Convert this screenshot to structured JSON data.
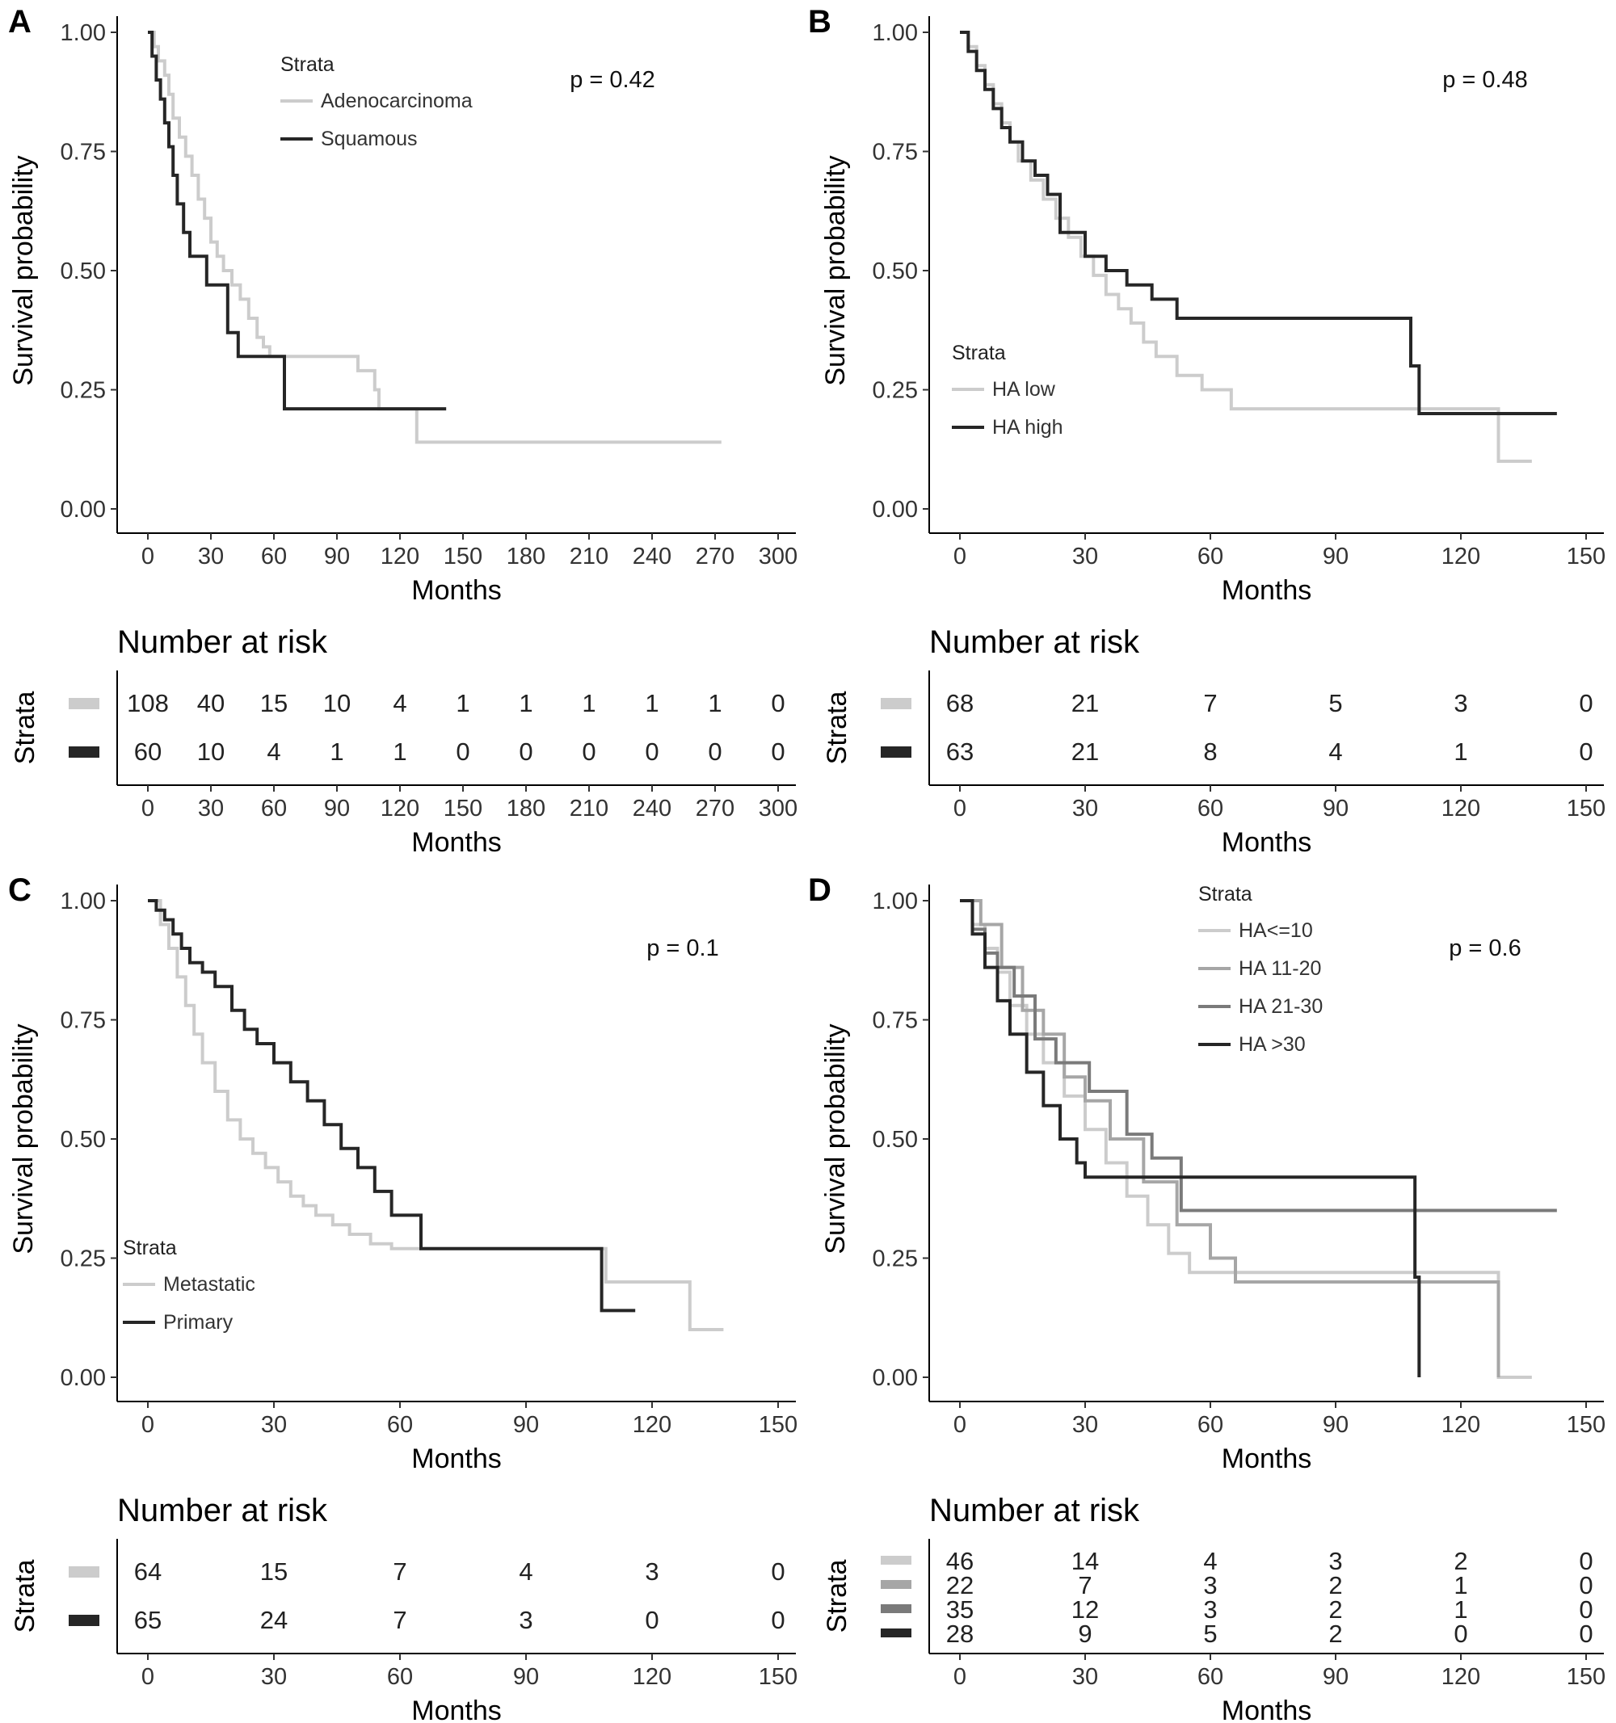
{
  "figure": {
    "panels": [
      {
        "id": "A",
        "pvalue": "p = 0.42",
        "legend": {
          "title": "Strata",
          "items": [
            "Adenocarcinoma",
            "Squamous"
          ]
        },
        "risk_title": "Number at risk",
        "risk_ylabel": "Strata",
        "risk_xlabel": "Months",
        "risk_rows": [
          {
            "color": "#cccccc",
            "values": [
              108,
              40,
              15,
              10,
              4,
              1,
              1,
              1,
              1,
              1,
              0
            ]
          },
          {
            "color": "#262626",
            "values": [
              60,
              10,
              4,
              1,
              1,
              0,
              0,
              0,
              0,
              0,
              0
            ]
          }
        ]
      },
      {
        "id": "B",
        "pvalue": "p = 0.48",
        "legend": {
          "title": "Strata",
          "items": [
            "HA low",
            "HA high"
          ]
        },
        "risk_title": "Number at risk",
        "risk_ylabel": "Strata",
        "risk_xlabel": "Months",
        "risk_rows": [
          {
            "color": "#cccccc",
            "values": [
              68,
              21,
              7,
              5,
              3,
              0
            ]
          },
          {
            "color": "#262626",
            "values": [
              63,
              21,
              8,
              4,
              1,
              0
            ]
          }
        ]
      },
      {
        "id": "C",
        "pvalue": "p = 0.1",
        "legend": {
          "title": "Strata",
          "items": [
            "Metastatic",
            "Primary"
          ]
        },
        "risk_title": "Number at risk",
        "risk_ylabel": "Strata",
        "risk_xlabel": "Months",
        "risk_rows": [
          {
            "color": "#cccccc",
            "values": [
              64,
              15,
              7,
              4,
              3,
              0
            ]
          },
          {
            "color": "#262626",
            "values": [
              65,
              24,
              7,
              3,
              0,
              0
            ]
          }
        ]
      },
      {
        "id": "D",
        "pvalue": "p = 0.6",
        "legend": {
          "title": "Strata",
          "items": [
            "HA<=10",
            "HA 11-20",
            "HA 21-30",
            "HA >30"
          ]
        },
        "risk_title": "Number at risk",
        "risk_ylabel": "Strata",
        "risk_xlabel": "Months",
        "risk_rows": [
          {
            "color": "#cccccc",
            "values": [
              46,
              14,
              4,
              3,
              2,
              0
            ]
          },
          {
            "color": "#a6a6a6",
            "values": [
              22,
              7,
              3,
              2,
              1,
              0
            ]
          },
          {
            "color": "#7a7a7a",
            "values": [
              35,
              12,
              3,
              2,
              1,
              0
            ]
          },
          {
            "color": "#262626",
            "values": [
              28,
              9,
              5,
              2,
              0,
              0
            ]
          }
        ]
      }
    ]
  },
  "chart_data": [
    {
      "panel": "A",
      "type": "line",
      "subtype": "kaplan-meier step",
      "xlabel": "Months",
      "ylabel": "Survival probability",
      "xlim": [
        -7,
        313
      ],
      "ylim": [
        -0.05,
        1.05
      ],
      "xticks": [
        0,
        30,
        60,
        90,
        120,
        150,
        180,
        210,
        240,
        270,
        300
      ],
      "yticks": [
        "0.00",
        "0.25",
        "0.50",
        "0.75",
        "1.00"
      ],
      "grid": false,
      "legend_position": "top-left",
      "series": [
        {
          "name": "Adenocarcinoma",
          "color": "#cccccc",
          "x": [
            0,
            3,
            5,
            8,
            10,
            12,
            15,
            18,
            21,
            24,
            27,
            30,
            33,
            36,
            40,
            44,
            48,
            52,
            55,
            58,
            62,
            100,
            108,
            110,
            128,
            273
          ],
          "y": [
            1.0,
            0.97,
            0.94,
            0.91,
            0.87,
            0.82,
            0.78,
            0.74,
            0.7,
            0.65,
            0.61,
            0.56,
            0.53,
            0.5,
            0.47,
            0.44,
            0.4,
            0.36,
            0.34,
            0.32,
            0.32,
            0.29,
            0.25,
            0.21,
            0.14,
            0.14
          ]
        },
        {
          "name": "Squamous",
          "color": "#262626",
          "x": [
            0,
            2,
            4,
            6,
            8,
            10,
            12,
            14,
            17,
            20,
            28,
            38,
            43,
            65,
            142
          ],
          "y": [
            1.0,
            0.95,
            0.9,
            0.86,
            0.81,
            0.76,
            0.7,
            0.64,
            0.58,
            0.53,
            0.47,
            0.37,
            0.32,
            0.21,
            0.21
          ]
        }
      ]
    },
    {
      "panel": "B",
      "type": "line",
      "subtype": "kaplan-meier step",
      "xlabel": "Months",
      "ylabel": "Survival probability",
      "xlim": [
        -7,
        156
      ],
      "ylim": [
        -0.05,
        1.05
      ],
      "xticks": [
        0,
        30,
        60,
        90,
        120,
        150
      ],
      "yticks": [
        "0.00",
        "0.25",
        "0.50",
        "0.75",
        "1.00"
      ],
      "grid": false,
      "legend_position": "bottom-left",
      "series": [
        {
          "name": "HA low",
          "color": "#cccccc",
          "x": [
            0,
            2,
            4,
            6,
            8,
            10,
            12,
            14,
            17,
            20,
            23,
            26,
            29,
            32,
            35,
            38,
            41,
            44,
            47,
            52,
            58,
            65,
            129,
            137
          ],
          "y": [
            1.0,
            0.97,
            0.93,
            0.89,
            0.85,
            0.81,
            0.77,
            0.73,
            0.69,
            0.65,
            0.61,
            0.57,
            0.53,
            0.49,
            0.45,
            0.42,
            0.39,
            0.35,
            0.32,
            0.28,
            0.25,
            0.21,
            0.1,
            0.1
          ]
        },
        {
          "name": "HA high",
          "color": "#262626",
          "x": [
            0,
            2,
            4,
            6,
            8,
            10,
            12,
            15,
            18,
            21,
            24,
            30,
            35,
            40,
            46,
            52,
            108,
            110,
            143
          ],
          "y": [
            1.0,
            0.96,
            0.92,
            0.88,
            0.84,
            0.8,
            0.77,
            0.73,
            0.7,
            0.66,
            0.58,
            0.53,
            0.5,
            0.47,
            0.44,
            0.4,
            0.3,
            0.2,
            0.2
          ]
        }
      ]
    },
    {
      "panel": "C",
      "type": "line",
      "subtype": "kaplan-meier step",
      "xlabel": "Months",
      "ylabel": "Survival probability",
      "xlim": [
        -7,
        156
      ],
      "ylim": [
        -0.05,
        1.05
      ],
      "xticks": [
        0,
        30,
        60,
        90,
        120,
        150
      ],
      "yticks": [
        "0.00",
        "0.25",
        "0.50",
        "0.75",
        "1.00"
      ],
      "grid": false,
      "legend_position": "bottom-left",
      "series": [
        {
          "name": "Metastatic",
          "color": "#cccccc",
          "x": [
            0,
            3,
            5,
            7,
            9,
            11,
            13,
            16,
            19,
            22,
            25,
            28,
            31,
            34,
            37,
            40,
            44,
            48,
            53,
            58,
            108,
            109,
            129,
            137
          ],
          "y": [
            1.0,
            0.95,
            0.9,
            0.84,
            0.78,
            0.72,
            0.66,
            0.6,
            0.54,
            0.5,
            0.47,
            0.44,
            0.41,
            0.38,
            0.36,
            0.34,
            0.32,
            0.3,
            0.28,
            0.27,
            0.27,
            0.2,
            0.1,
            0.1
          ]
        },
        {
          "name": "Primary",
          "color": "#262626",
          "x": [
            0,
            2,
            4,
            6,
            8,
            10,
            13,
            16,
            20,
            23,
            26,
            30,
            34,
            38,
            42,
            46,
            50,
            54,
            58,
            65,
            108,
            116
          ],
          "y": [
            1.0,
            0.98,
            0.96,
            0.93,
            0.9,
            0.87,
            0.85,
            0.82,
            0.77,
            0.73,
            0.7,
            0.66,
            0.62,
            0.58,
            0.53,
            0.48,
            0.44,
            0.39,
            0.34,
            0.27,
            0.14,
            0.14
          ]
        }
      ]
    },
    {
      "panel": "D",
      "type": "line",
      "subtype": "kaplan-meier step",
      "xlabel": "Months",
      "ylabel": "Survival probability",
      "xlim": [
        -7,
        156
      ],
      "ylim": [
        -0.05,
        1.05
      ],
      "xticks": [
        0,
        30,
        60,
        90,
        120,
        150
      ],
      "yticks": [
        "0.00",
        "0.25",
        "0.50",
        "0.75",
        "1.00"
      ],
      "grid": false,
      "legend_position": "top-center",
      "series": [
        {
          "name": "HA<=10",
          "color": "#cccccc",
          "x": [
            0,
            3,
            6,
            9,
            12,
            16,
            20,
            25,
            30,
            35,
            40,
            45,
            50,
            55,
            60,
            129,
            137
          ],
          "y": [
            1.0,
            0.95,
            0.9,
            0.85,
            0.78,
            0.72,
            0.66,
            0.59,
            0.52,
            0.45,
            0.38,
            0.32,
            0.26,
            0.22,
            0.22,
            0.0,
            0.0
          ]
        },
        {
          "name": "HA 11-20",
          "color": "#a6a6a6",
          "x": [
            0,
            5,
            10,
            15,
            20,
            25,
            30,
            36,
            44,
            52,
            60,
            66,
            128,
            129
          ],
          "y": [
            1.0,
            0.95,
            0.86,
            0.77,
            0.72,
            0.63,
            0.58,
            0.5,
            0.41,
            0.32,
            0.25,
            0.2,
            0.2,
            0.0
          ]
        },
        {
          "name": "HA 21-30",
          "color": "#7a7a7a",
          "x": [
            0,
            3,
            6,
            9,
            13,
            18,
            23,
            31,
            40,
            46,
            53,
            143
          ],
          "y": [
            1.0,
            0.94,
            0.89,
            0.86,
            0.8,
            0.71,
            0.66,
            0.6,
            0.51,
            0.46,
            0.35,
            0.35
          ]
        },
        {
          "name": "HA >30",
          "color": "#262626",
          "x": [
            0,
            3,
            6,
            9,
            12,
            16,
            20,
            24,
            28,
            30,
            109,
            110
          ],
          "y": [
            1.0,
            0.93,
            0.86,
            0.79,
            0.72,
            0.64,
            0.57,
            0.5,
            0.45,
            0.42,
            0.21,
            0.0
          ]
        }
      ]
    }
  ]
}
